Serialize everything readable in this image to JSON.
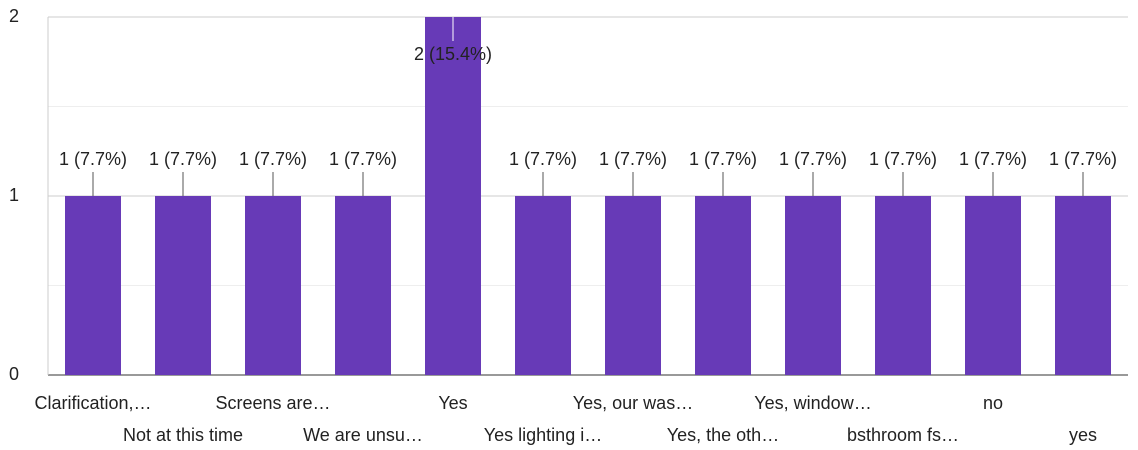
{
  "chart_data": {
    "type": "bar",
    "categories": [
      "Clarification,…",
      "Not at this time",
      "Screens are…",
      "We are unsu…",
      "Yes",
      "Yes lighting i…",
      "Yes, our was…",
      "Yes, the oth…",
      "Yes, window…",
      "bsthroom fs…",
      "no",
      "yes"
    ],
    "values": [
      1,
      1,
      1,
      1,
      2,
      1,
      1,
      1,
      1,
      1,
      1,
      1
    ],
    "value_labels": [
      "1 (7.7%)",
      "1 (7.7%)",
      "1 (7.7%)",
      "1 (7.7%)",
      "2 (15.4%)",
      "1 (7.7%)",
      "1 (7.7%)",
      "1 (7.7%)",
      "1 (7.7%)",
      "1 (7.7%)",
      "1 (7.7%)",
      "1 (7.7%)"
    ],
    "color": "#673ab7",
    "ylim": [
      0,
      2
    ],
    "yticks": [
      0,
      1,
      2
    ],
    "grid": true
  }
}
